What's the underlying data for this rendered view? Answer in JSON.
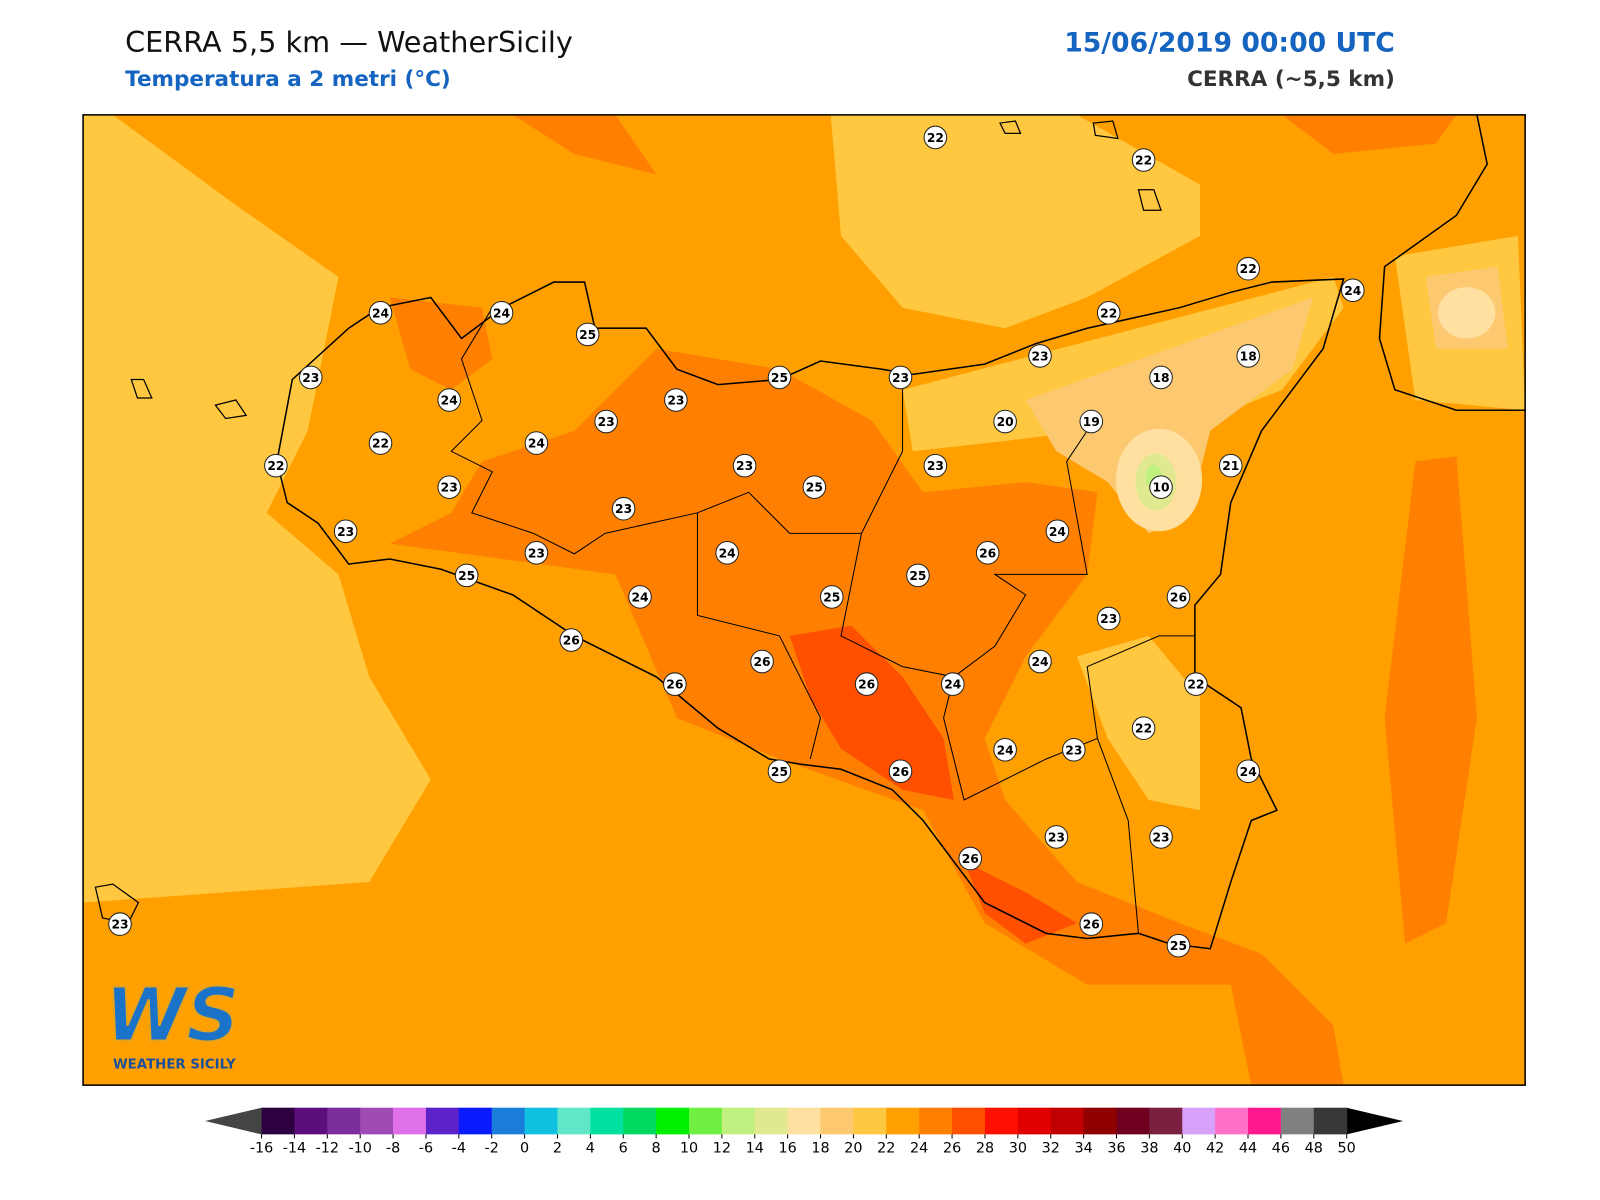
{
  "header": {
    "title": "CERRA 5,5 km — WeatherSicily",
    "subtitle": "Temperatura a 2 metri (°C)",
    "datetime": "15/06/2019 00:00 UTC",
    "model": "CERRA (~5,5 km)"
  },
  "stations": [
    22,
    22,
    22,
    24,
    24,
    24,
    25,
    22,
    23,
    24,
    23,
    25,
    23,
    23,
    18,
    18,
    22,
    23,
    24,
    20,
    19,
    22,
    23,
    23,
    25,
    23,
    10,
    21,
    23,
    23,
    23,
    24,
    26,
    24,
    25,
    24,
    25,
    25,
    26,
    23,
    26,
    26,
    26,
    24,
    24,
    22,
    26,
    22,
    24,
    23,
    24,
    25,
    26,
    23,
    23,
    26,
    26,
    25,
    23
  ],
  "colorbar": {
    "ticks": [
      -16,
      -14,
      -12,
      -10,
      -8,
      -6,
      -4,
      -2,
      0,
      2,
      4,
      6,
      8,
      10,
      12,
      14,
      16,
      18,
      20,
      22,
      24,
      26,
      28,
      30,
      32,
      34,
      36,
      38,
      40,
      42,
      44,
      46,
      48,
      50
    ],
    "colors": [
      "#2d0040",
      "#5c0f7a",
      "#7b2d9a",
      "#a04ab5",
      "#e070e8",
      "#5a22c8",
      "#0a1aff",
      "#1a7ed8",
      "#10c0e0",
      "#5ee8c8",
      "#00e0a0",
      "#00d860",
      "#00f000",
      "#70f040",
      "#c0f080",
      "#e0e890",
      "#ffe0a0",
      "#fcc870",
      "#ffc840",
      "#ffa000",
      "#ff8000",
      "#ff5000",
      "#ff1000",
      "#e00000",
      "#c00000",
      "#900000",
      "#700020",
      "#7a2040",
      "#d8a0f8",
      "#ff70c8",
      "#ff1890",
      "#808080",
      "#383838"
    ],
    "extend_colors": [
      "#444444",
      "#000000"
    ]
  },
  "logo": {
    "mark": "WS",
    "name": "WEATHER SICILY"
  }
}
